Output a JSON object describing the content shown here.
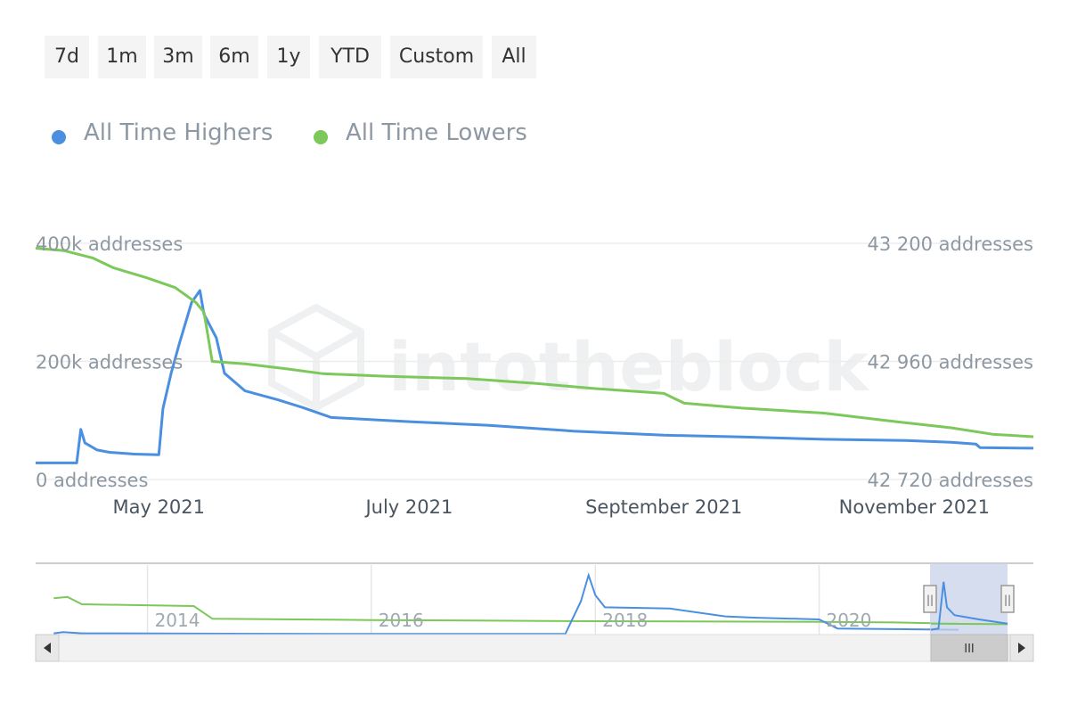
{
  "range_selector": {
    "buttons": [
      "7d",
      "1m",
      "3m",
      "6m",
      "1y",
      "YTD",
      "Custom",
      "All"
    ]
  },
  "legend": {
    "items": [
      {
        "label": "All Time Highers",
        "color": "#4a8fe0"
      },
      {
        "label": "All Time Lowers",
        "color": "#7cc85a"
      }
    ]
  },
  "watermark": "intotheblock",
  "chart_data": {
    "type": "line",
    "x_ticks": [
      "May 2021",
      "July 2021",
      "September 2021",
      "November 2021"
    ],
    "y_left": {
      "ticks": [
        "0 addresses",
        "200k addresses",
        "400k addresses"
      ],
      "range": [
        0,
        400000
      ]
    },
    "y_right": {
      "ticks": [
        "42 720 addresses",
        "42 960 addresses",
        "43 200 addresses"
      ],
      "range": [
        42720,
        43200
      ]
    },
    "series": [
      {
        "name": "All Time Highers",
        "axis": "left",
        "color": "#4a8fe0",
        "points": [
          [
            "2021-04-01",
            28000
          ],
          [
            "2021-04-05",
            28000
          ],
          [
            "2021-04-11",
            28000
          ],
          [
            "2021-04-12",
            85000
          ],
          [
            "2021-04-13",
            62000
          ],
          [
            "2021-04-16",
            50000
          ],
          [
            "2021-04-19",
            46000
          ],
          [
            "2021-04-25",
            43000
          ],
          [
            "2021-05-01",
            42000
          ],
          [
            "2021-05-02",
            120000
          ],
          [
            "2021-05-04",
            180000
          ],
          [
            "2021-05-06",
            230000
          ],
          [
            "2021-05-09",
            300000
          ],
          [
            "2021-05-11",
            320000
          ],
          [
            "2021-05-12",
            280000
          ],
          [
            "2021-05-15",
            240000
          ],
          [
            "2021-05-17",
            180000
          ],
          [
            "2021-05-22",
            150000
          ],
          [
            "2021-05-30",
            135000
          ],
          [
            "2021-06-05",
            122000
          ],
          [
            "2021-06-12",
            105000
          ],
          [
            "2021-07-01",
            98000
          ],
          [
            "2021-07-20",
            92000
          ],
          [
            "2021-08-10",
            82000
          ],
          [
            "2021-09-01",
            75000
          ],
          [
            "2021-09-20",
            72000
          ],
          [
            "2021-10-10",
            68000
          ],
          [
            "2021-10-30",
            66000
          ],
          [
            "2021-11-10",
            63000
          ],
          [
            "2021-11-16",
            60000
          ],
          [
            "2021-11-17",
            54000
          ],
          [
            "2021-11-30",
            53000
          ]
        ]
      },
      {
        "name": "All Time Lowers",
        "axis": "right",
        "color": "#7cc85a",
        "points": [
          [
            "2021-04-01",
            43190
          ],
          [
            "2021-04-08",
            43185
          ],
          [
            "2021-04-15",
            43170
          ],
          [
            "2021-04-20",
            43150
          ],
          [
            "2021-04-28",
            43130
          ],
          [
            "2021-05-05",
            43110
          ],
          [
            "2021-05-10",
            43080
          ],
          [
            "2021-05-12",
            43060
          ],
          [
            "2021-05-14",
            42960
          ],
          [
            "2021-05-22",
            42955
          ],
          [
            "2021-06-01",
            42945
          ],
          [
            "2021-06-10",
            42935
          ],
          [
            "2021-06-25",
            42930
          ],
          [
            "2021-07-15",
            42925
          ],
          [
            "2021-08-01",
            42915
          ],
          [
            "2021-08-15",
            42905
          ],
          [
            "2021-09-01",
            42895
          ],
          [
            "2021-09-06",
            42875
          ],
          [
            "2021-09-20",
            42865
          ],
          [
            "2021-10-10",
            42855
          ],
          [
            "2021-10-25",
            42840
          ],
          [
            "2021-11-10",
            42825
          ],
          [
            "2021-11-20",
            42812
          ],
          [
            "2021-11-30",
            42807
          ]
        ]
      }
    ],
    "grid": true
  },
  "navigator": {
    "x_ticks": [
      "2014",
      "2016",
      "2018",
      "2020"
    ],
    "scrollbar_grip": "III",
    "handle_grip": "||"
  }
}
